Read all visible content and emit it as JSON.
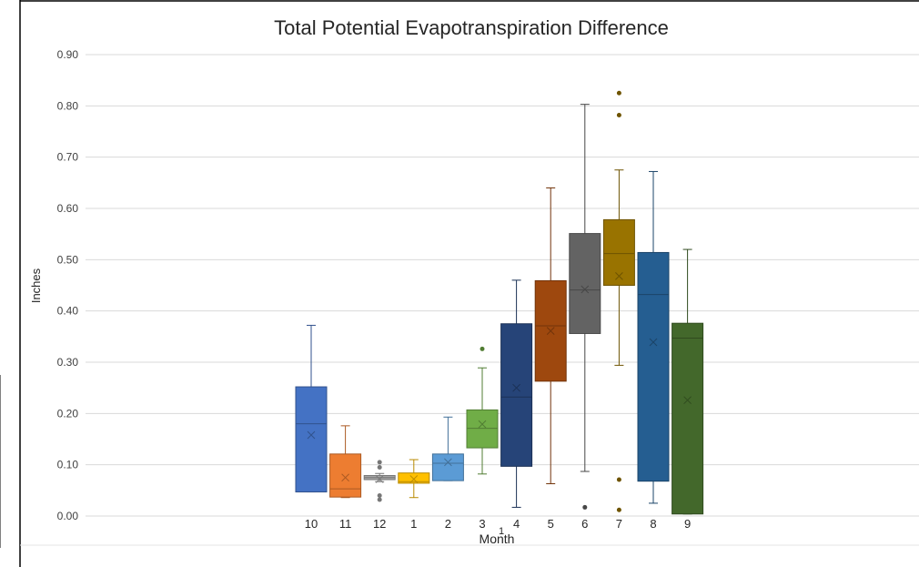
{
  "chart_data": {
    "type": "box",
    "title": "Total Potential Evapotranspiration Difference",
    "xlabel": "Month",
    "ylabel": "Inches",
    "x_center_label": "1",
    "ylim": [
      0,
      0.9
    ],
    "yticks": [
      "0.00",
      "0.10",
      "0.20",
      "0.30",
      "0.40",
      "0.50",
      "0.60",
      "0.70",
      "0.80",
      "0.90"
    ],
    "ytick_values": [
      0,
      0.1,
      0.2,
      0.3,
      0.4,
      0.5,
      0.6,
      0.7,
      0.8,
      0.9
    ],
    "grid": true,
    "series": [
      {
        "label": "10",
        "color": "#4472C4",
        "q1": 0.047,
        "median": 0.18,
        "q3": 0.252,
        "mean": 0.158,
        "whisker_low": 0.047,
        "whisker_high": 0.372,
        "outliers": []
      },
      {
        "label": "11",
        "color": "#ED7D31",
        "q1": 0.037,
        "median": 0.053,
        "q3": 0.121,
        "mean": 0.075,
        "whisker_low": 0.036,
        "whisker_high": 0.176,
        "outliers": []
      },
      {
        "label": "12",
        "color": "#A5A5A5",
        "q1": 0.071,
        "median": 0.075,
        "q3": 0.079,
        "mean": 0.072,
        "whisker_low": 0.067,
        "whisker_high": 0.083,
        "outliers": [
          0.105,
          0.095,
          0.04,
          0.032
        ]
      },
      {
        "label": "1",
        "color": "#FFC000",
        "q1": 0.064,
        "median": 0.067,
        "q3": 0.084,
        "mean": 0.072,
        "whisker_low": 0.036,
        "whisker_high": 0.11,
        "outliers": []
      },
      {
        "label": "2",
        "color": "#5B9BD5",
        "q1": 0.069,
        "median": 0.103,
        "q3": 0.121,
        "mean": 0.105,
        "whisker_low": 0.069,
        "whisker_high": 0.193,
        "outliers": []
      },
      {
        "label": "3",
        "color": "#70AD47",
        "q1": 0.133,
        "median": 0.171,
        "q3": 0.207,
        "mean": 0.179,
        "whisker_low": 0.082,
        "whisker_high": 0.289,
        "outliers": [
          0.326
        ]
      },
      {
        "label": "4",
        "color": "#264478",
        "q1": 0.097,
        "median": 0.232,
        "q3": 0.375,
        "mean": 0.25,
        "whisker_low": 0.017,
        "whisker_high": 0.46,
        "outliers": []
      },
      {
        "label": "5",
        "color": "#9E480E",
        "q1": 0.263,
        "median": 0.371,
        "q3": 0.459,
        "mean": 0.361,
        "whisker_low": 0.063,
        "whisker_high": 0.64,
        "outliers": []
      },
      {
        "label": "6",
        "color": "#636363",
        "q1": 0.356,
        "median": 0.441,
        "q3": 0.551,
        "mean": 0.442,
        "whisker_low": 0.087,
        "whisker_high": 0.803,
        "outliers": [
          0.017
        ]
      },
      {
        "label": "7",
        "color": "#997300",
        "q1": 0.45,
        "median": 0.512,
        "q3": 0.578,
        "mean": 0.468,
        "whisker_low": 0.294,
        "whisker_high": 0.675,
        "outliers": [
          0.825,
          0.782,
          0.071,
          0.012
        ]
      },
      {
        "label": "8",
        "color": "#255E91",
        "q1": 0.068,
        "median": 0.432,
        "q3": 0.514,
        "mean": 0.339,
        "whisker_low": 0.025,
        "whisker_high": 0.672,
        "outliers": []
      },
      {
        "label": "9",
        "color": "#43682B",
        "q1": 0.004,
        "median": 0.347,
        "q3": 0.376,
        "mean": 0.226,
        "whisker_low": 0.004,
        "whisker_high": 0.52,
        "outliers": []
      }
    ]
  }
}
